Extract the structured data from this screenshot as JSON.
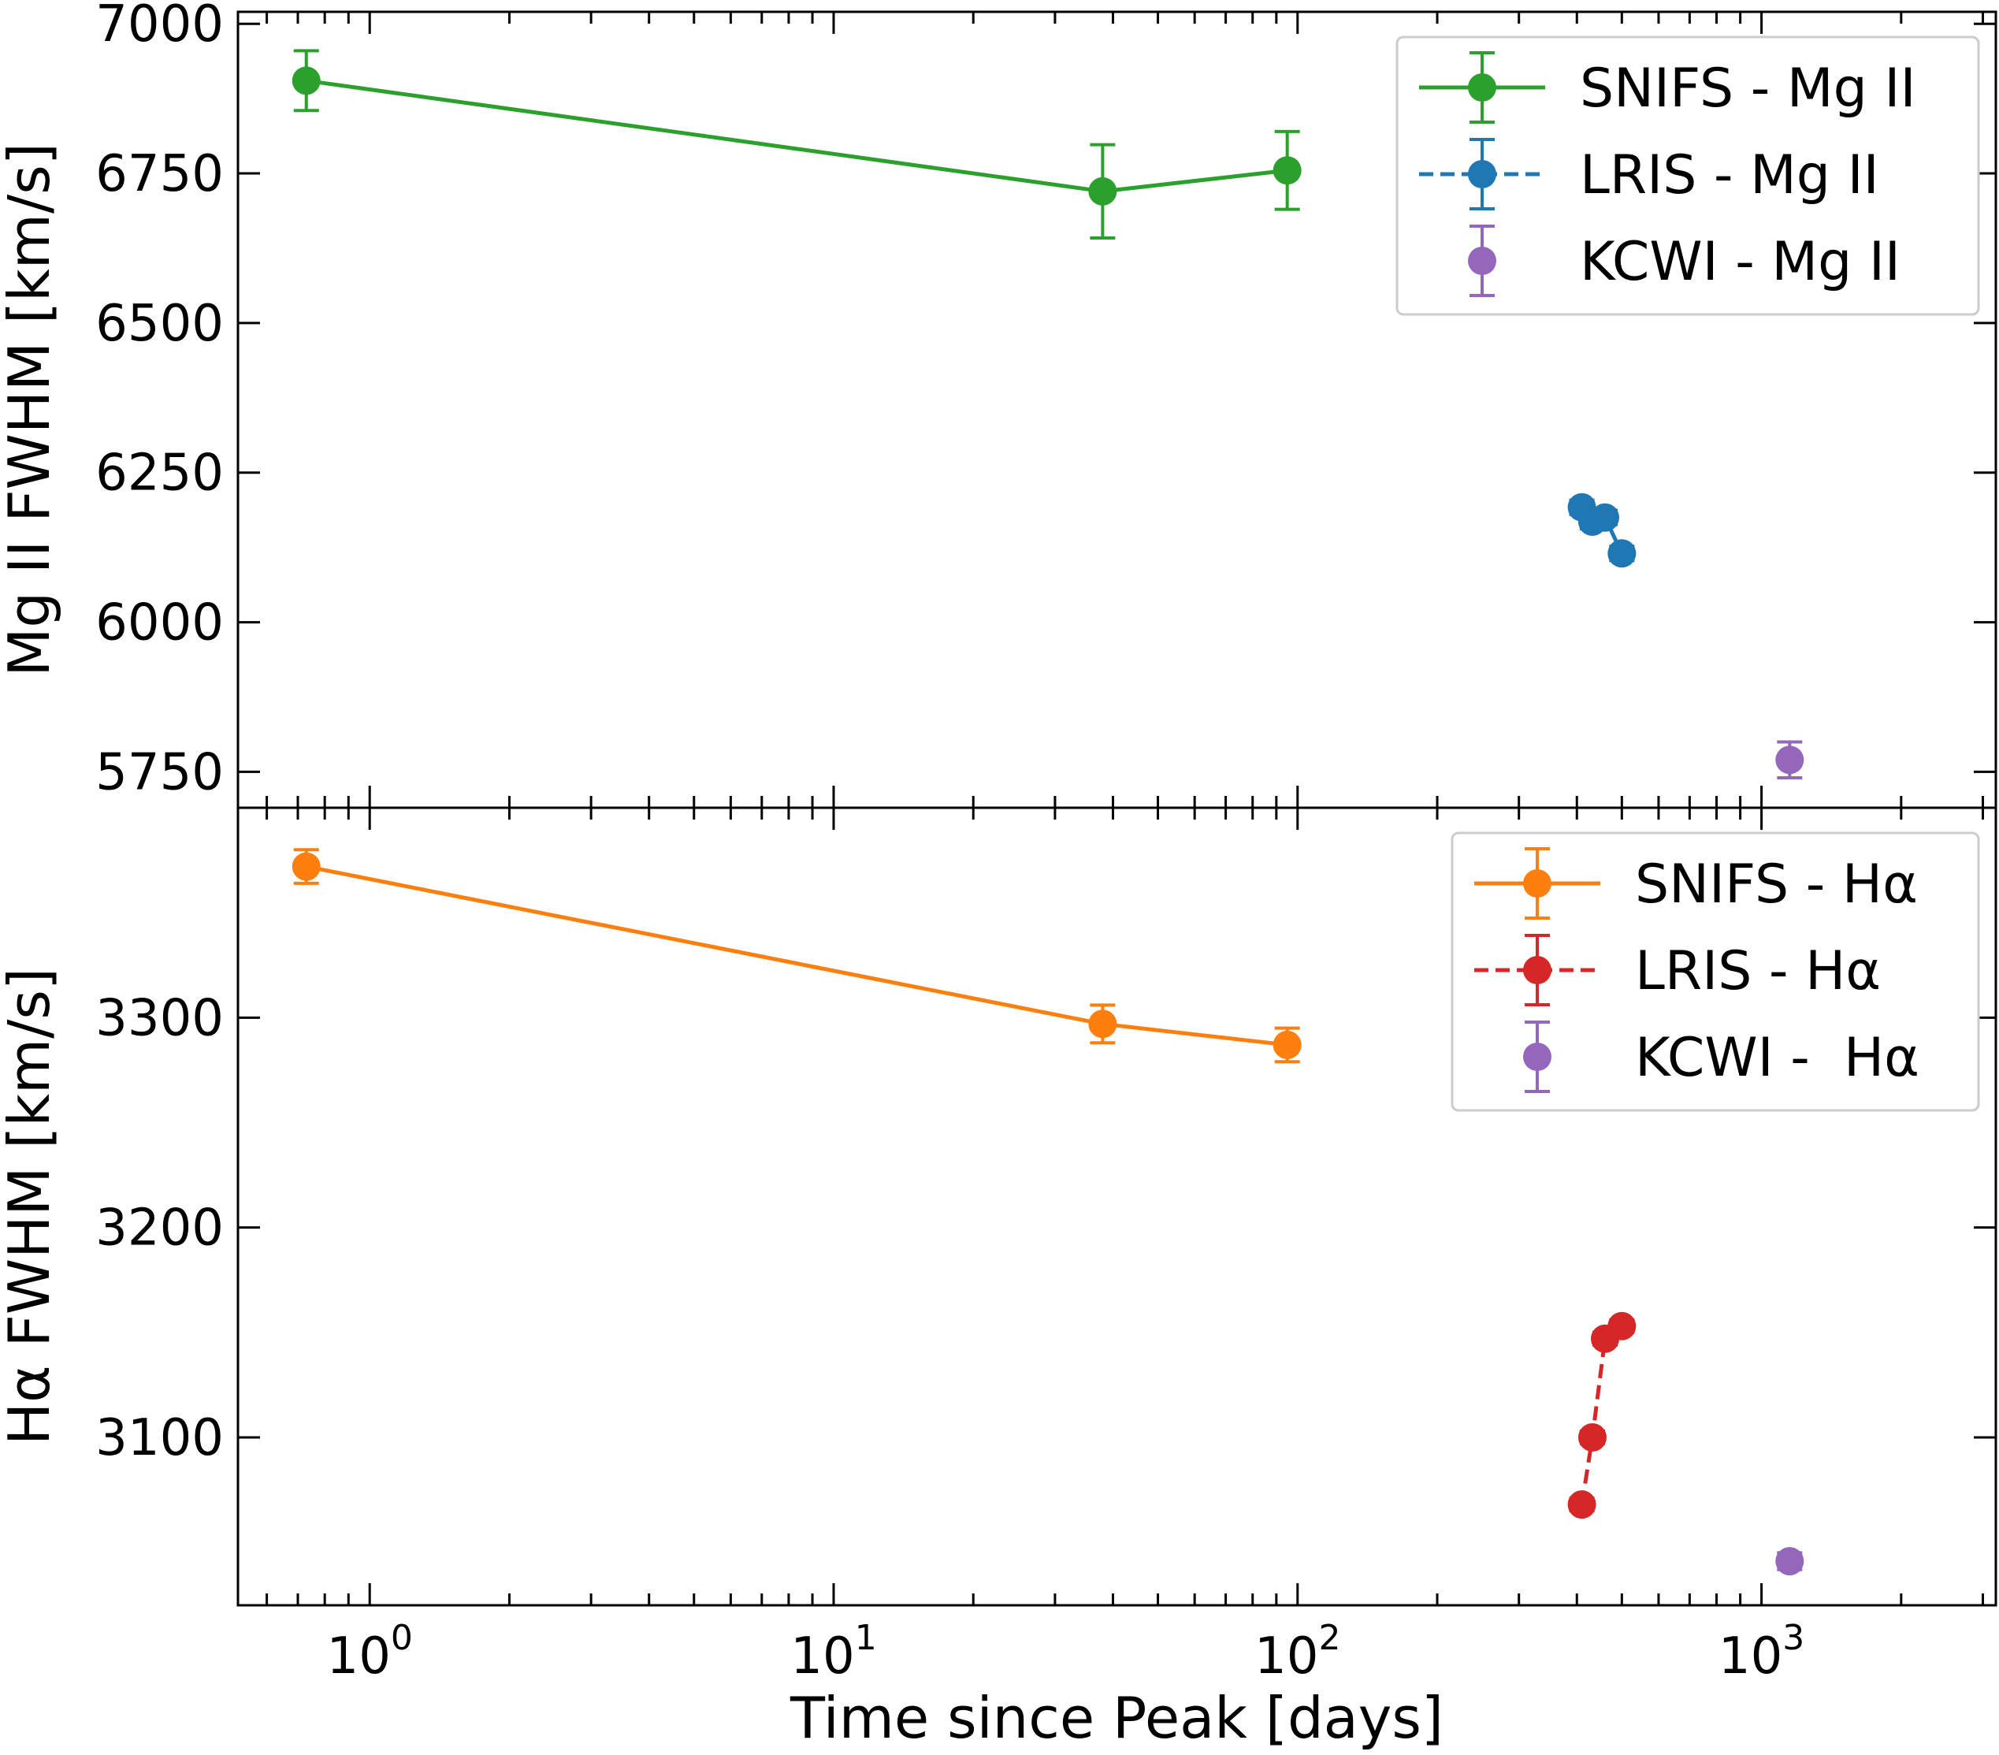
{
  "chart_data": [
    {
      "type": "line",
      "panel": "top",
      "ylabel": "Mg II FWHM [km/s]",
      "xlabel": "",
      "x_scale": "log",
      "xlim": [
        0.52,
        3200
      ],
      "ylim": [
        5690,
        7020
      ],
      "yticks": [
        5750,
        6000,
        6250,
        6500,
        6750,
        7000
      ],
      "grid": false,
      "legend": "top-right",
      "series": [
        {
          "name": "SNIFS - Mg II",
          "color": "#2ca02c",
          "linestyle": "solid",
          "x": [
            0.73,
            38,
            95
          ],
          "y": [
            6905,
            6720,
            6755
          ],
          "yerr": [
            50,
            78,
            65
          ]
        },
        {
          "name": "LRIS - Mg II",
          "color": "#1f77b4",
          "linestyle": "dashed",
          "x": [
            410,
            432,
            460,
            500
          ],
          "y": [
            6192,
            6168,
            6175,
            6115
          ],
          "yerr": [
            12,
            12,
            12,
            12
          ]
        },
        {
          "name": "KCWI - Mg II",
          "color": "#9467bd",
          "linestyle": "none",
          "x": [
            1150
          ],
          "y": [
            5770
          ],
          "yerr": [
            30
          ]
        }
      ]
    },
    {
      "type": "line",
      "panel": "bottom",
      "ylabel": "Hα FWHM [km/s]",
      "xlabel": "Time since Peak [days]",
      "x_scale": "log",
      "xlim": [
        0.52,
        3200
      ],
      "ylim": [
        3020,
        3400
      ],
      "yticks": [
        3100,
        3200,
        3300
      ],
      "xticks": [
        1,
        10,
        100,
        1000
      ],
      "xtick_labels": [
        {
          "base": "10",
          "exp": "0"
        },
        {
          "base": "10",
          "exp": "1"
        },
        {
          "base": "10",
          "exp": "2"
        },
        {
          "base": "10",
          "exp": "3"
        }
      ],
      "grid": false,
      "legend": "top-right",
      "series": [
        {
          "name": "SNIFS - Hα",
          "color": "#ff7f0e",
          "linestyle": "solid",
          "x": [
            0.73,
            38,
            95
          ],
          "y": [
            3372,
            3297,
            3287
          ],
          "yerr": [
            8,
            9,
            8
          ]
        },
        {
          "name": "LRIS - Hα",
          "color": "#d62728",
          "linestyle": "dashed",
          "x": [
            410,
            432,
            460,
            500
          ],
          "y": [
            3068,
            3100,
            3147,
            3153
          ],
          "yerr": [
            3,
            3,
            3,
            3
          ]
        },
        {
          "name": "KCWI -  Hα",
          "color": "#9467bd",
          "linestyle": "none",
          "x": [
            1150
          ],
          "y": [
            3041
          ],
          "yerr": [
            4
          ]
        }
      ]
    }
  ]
}
